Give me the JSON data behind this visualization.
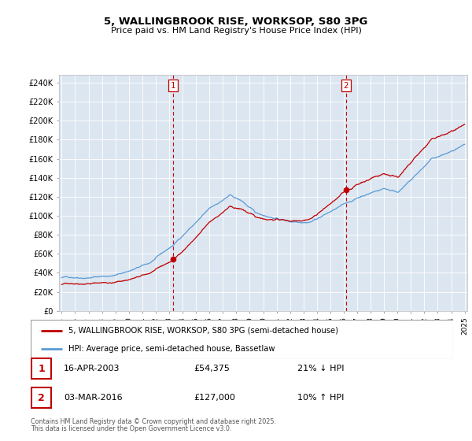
{
  "title_line1": "5, WALLINGBROOK RISE, WORKSOP, S80 3PG",
  "title_line2": "Price paid vs. HM Land Registry's House Price Index (HPI)",
  "ylabel_ticks": [
    "£0",
    "£20K",
    "£40K",
    "£60K",
    "£80K",
    "£100K",
    "£120K",
    "£140K",
    "£160K",
    "£180K",
    "£200K",
    "£220K",
    "£240K"
  ],
  "ylabel_values": [
    0,
    20000,
    40000,
    60000,
    80000,
    100000,
    120000,
    140000,
    160000,
    180000,
    200000,
    220000,
    240000
  ],
  "year_start": 1995,
  "year_end": 2025,
  "sale1_date": 2003.29,
  "sale1_price": 54375,
  "sale1_hpi_pct": "21% ↓ HPI",
  "sale1_date_str": "16-APR-2003",
  "sale2_date": 2016.17,
  "sale2_price": 127000,
  "sale2_hpi_pct": "10% ↑ HPI",
  "sale2_date_str": "03-MAR-2016",
  "hpi_color": "#5b9bd5",
  "price_color": "#c00000",
  "dashed_color": "#cc0000",
  "legend_label1": "5, WALLINGBROOK RISE, WORKSOP, S80 3PG (semi-detached house)",
  "legend_label2": "HPI: Average price, semi-detached house, Bassetlaw",
  "footer1": "Contains HM Land Registry data © Crown copyright and database right 2025.",
  "footer2": "This data is licensed under the Open Government Licence v3.0."
}
